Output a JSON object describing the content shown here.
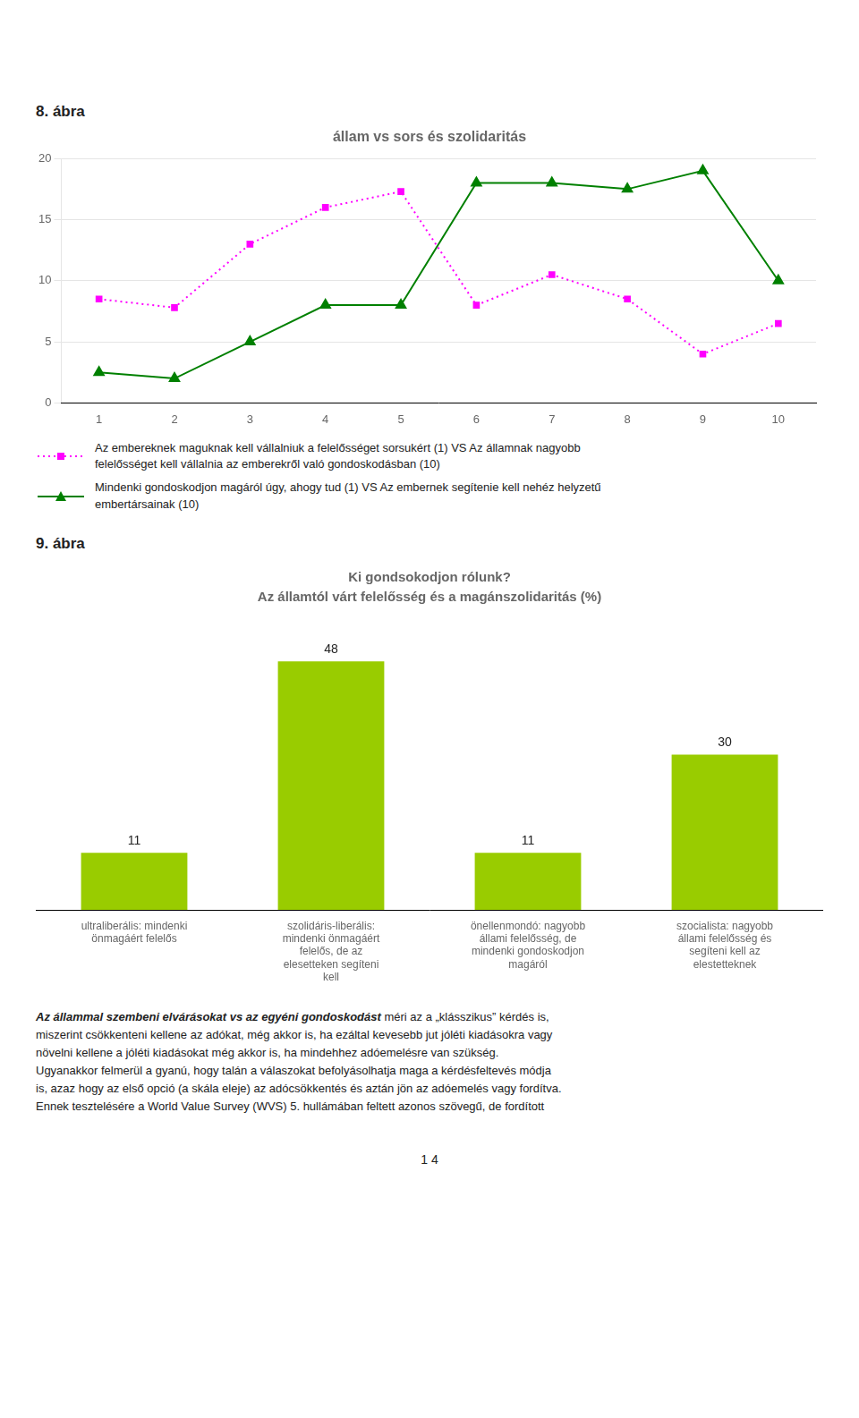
{
  "chart_data": [
    {
      "type": "line",
      "title": "állam vs sors és szolidaritás",
      "annotations": [
        "8. ábra"
      ],
      "x": [
        1,
        2,
        3,
        4,
        5,
        6,
        7,
        8,
        9,
        10
      ],
      "xlim": [
        0.5,
        10.5
      ],
      "xticks": [
        1,
        2,
        3,
        4,
        5,
        6,
        7,
        8,
        9,
        10
      ],
      "ylim": [
        0,
        20
      ],
      "yticks": [
        0,
        5,
        10,
        15,
        20
      ],
      "grid": true,
      "legend": "bottom",
      "series": [
        {
          "name": "Az embereknek maguknak kell vállalniuk a felelősséget sorsukért (1) VS Az államnak nagyobb\nfelelősséget kell vállalnia az emberekről való gondoskodásban (10)",
          "color": "#FF00FF",
          "marker": "square",
          "line_style": "dotted",
          "values": [
            8.5,
            7.8,
            13.0,
            16.0,
            17.3,
            8.0,
            10.5,
            8.5,
            4.0,
            6.5
          ]
        },
        {
          "name": "Mindenki gondoskodjon magáról úgy, ahogy tud (1) VS Az embernek segítenie kell nehéz helyzetű\nembertársainak (10)",
          "color": "#008000",
          "marker": "triangle",
          "line_style": "solid",
          "values": [
            2.5,
            2.0,
            5.0,
            8.0,
            8.0,
            18.0,
            18.0,
            17.5,
            19.0,
            10.0
          ]
        }
      ]
    },
    {
      "type": "bar",
      "title": "Ki gondsokodjon rólunk?",
      "subtitle": "Az államtól várt felelősség és a magánszolidaritás (%)",
      "annotations": [
        "9. ábra",
        "Az állammal szembeni elvárásokat vs az egyéni gondoskodást",
        "méri az a „klásszikus” kérdés is,\nmiszerint csökkenteni kellene az adókat, még akkor is, ha ezáltal kevesebb jut jóléti kiadásokra vagy\nnövelni kellene a jóléti kiadásokat még akkor is, ha mindehhez adóemelésre van szükség.\nUgyanakkor felmerül a gyanú, hogy talán a válaszokat befolyásolhatja maga a kérdésfeltevés módja\nis, azaz hogy az első opció (a skála eleje) az adócsökkentés és aztán jön az adóemelés vagy fordítva.\nEnnek tesztelésére a World Value Survey (WVS) 5. hullámában feltett azonos szövegű, de fordított",
        "1 4"
      ],
      "categories": [
        "ultraliberális: mindenki\nönmagáért felelős",
        "szolidáris-liberális:\nmindenki önmagáért\nfelelős, de az\nelesetteken segíteni\nkell",
        "önellenmondó: nagyobb\nállami felelősség, de\nmindenki gondoskodjon\nmagáról",
        "szocialista: nagyobb\nállami felelősség és\nsegíteni kell az\nelestetteknek"
      ],
      "values": [
        11,
        48,
        11,
        30
      ],
      "color": "#99CC00",
      "ylim": [
        0,
        56
      ],
      "grid": false,
      "tick_labels": "x",
      "data_labels": true
    }
  ]
}
